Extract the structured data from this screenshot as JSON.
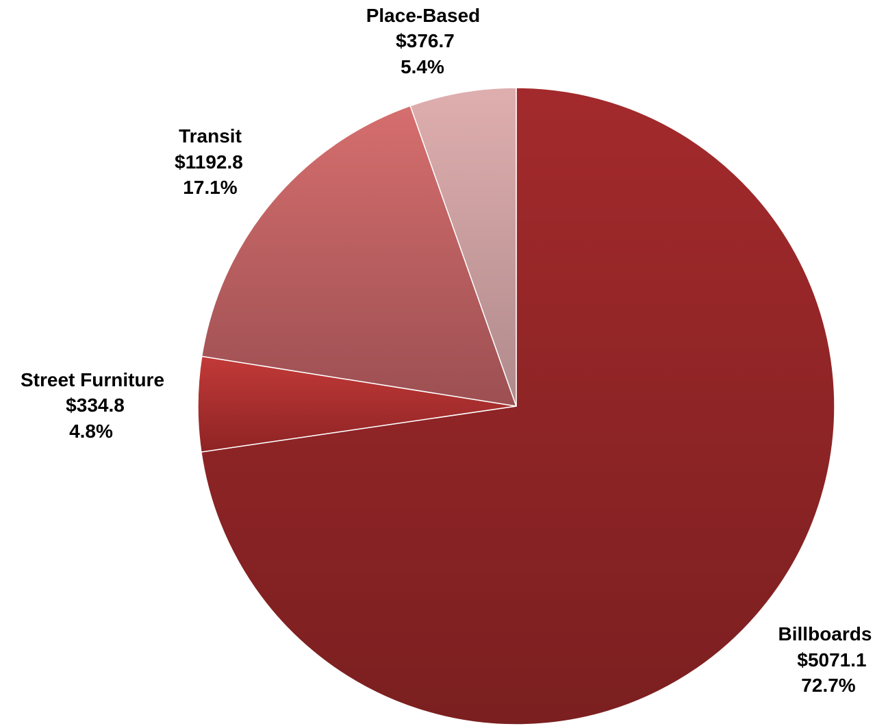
{
  "chart_data": {
    "type": "pie",
    "title": "",
    "slices": [
      {
        "name": "Billboards",
        "value_label": "$5071.1",
        "percent_label": "72.7%",
        "value": 5071.1,
        "percent": 72.7,
        "color_start": "#a32a2c",
        "color_end": "#7b1f20"
      },
      {
        "name": "Street Furniture",
        "value_label": "$334.8",
        "percent_label": "4.8%",
        "value": 334.8,
        "percent": 4.8,
        "color_start": "#c23a38",
        "color_end": "#8e2324"
      },
      {
        "name": "Transit",
        "value_label": "$1192.8",
        "percent_label": "17.1%",
        "value": 1192.8,
        "percent": 17.1,
        "color_start": "#d66e6e",
        "color_end": "#9c4f52"
      },
      {
        "name": "Place-Based",
        "value_label": "$376.7",
        "percent_label": "5.4%",
        "value": 376.7,
        "percent": 5.4,
        "color_start": "#dfaeae",
        "color_end": "#b08a8c"
      }
    ]
  }
}
